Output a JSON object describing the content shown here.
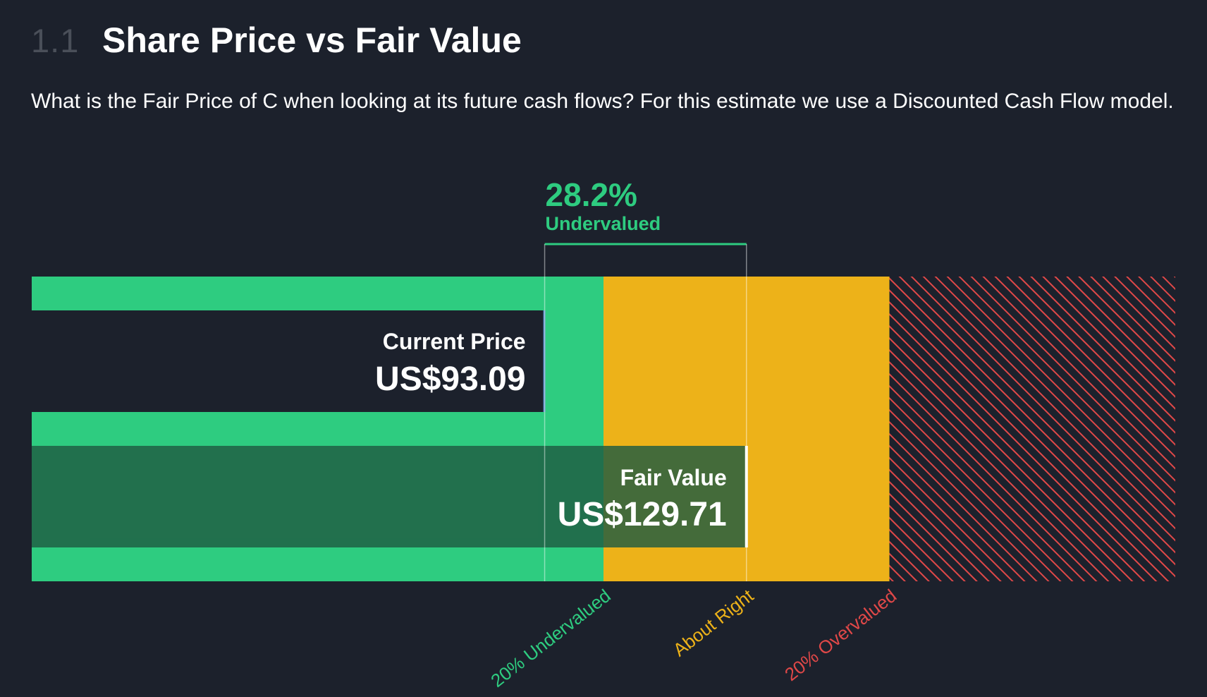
{
  "header": {
    "section_number": "1.1",
    "title": "Share Price vs Fair Value"
  },
  "description": "What is the Fair Price of C when looking at its future cash flows? For this estimate we use a Discounted Cash Flow model.",
  "colors": {
    "background": "#1c212c",
    "undervalued": "#2ecc80",
    "about_right": "#edb219",
    "overvalued": "#e04848",
    "current_price_box": "#1c212c",
    "fair_value_box": "#1f5c42",
    "fair_value_marker": "#ffffff"
  },
  "chart_data": {
    "type": "valuation-bar",
    "currency": "US$",
    "current_price": {
      "label": "Current Price",
      "value": 93.09,
      "display": "US$93.09"
    },
    "fair_value": {
      "label": "Fair Value",
      "value": 129.71,
      "display": "US$129.71"
    },
    "discount": {
      "value": 28.2,
      "display": "28.2%",
      "label": "Undervalued"
    },
    "zones": [
      {
        "name": "undervalued",
        "label": "20% Undervalued",
        "to_fraction_of_fair_value": 0.8
      },
      {
        "name": "about_right",
        "label": "About Right",
        "from_fraction_of_fair_value": 0.8,
        "to_fraction_of_fair_value": 1.2
      },
      {
        "name": "overvalued",
        "label": "20% Overvalued",
        "from_fraction_of_fair_value": 1.2
      }
    ],
    "axis_max_multiple_of_fair_value": 1.6
  }
}
